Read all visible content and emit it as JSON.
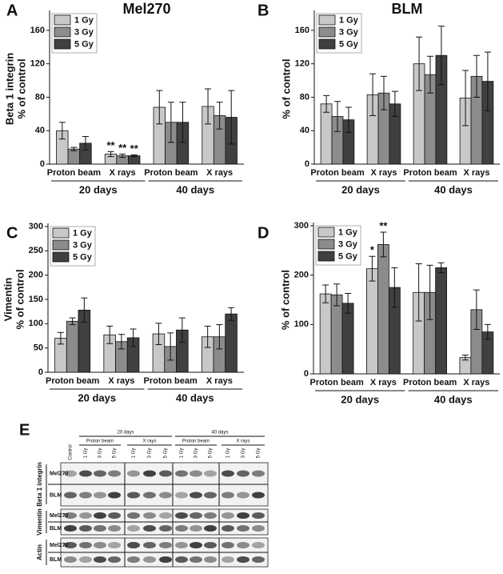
{
  "chart_data": [
    {
      "type": "bar",
      "panel": "A",
      "title": "Mel270",
      "ylabel": [
        "Beta 1 integrin",
        "% of control"
      ],
      "categories": [
        "Proton beam",
        "X rays",
        "Proton beam",
        "X rays"
      ],
      "groups": [
        "20 days",
        "40 days"
      ],
      "ylim": [
        0,
        180
      ],
      "yticks": [
        0,
        40,
        80,
        120,
        160
      ],
      "series": [
        {
          "name": "1 Gy",
          "color": "#c8c8c8",
          "values": [
            40,
            12,
            68,
            69
          ],
          "errors": [
            10,
            3,
            20,
            21
          ],
          "labels": [
            null,
            "**",
            null,
            null
          ]
        },
        {
          "name": "3 Gy",
          "color": "#8c8c8c",
          "values": [
            18,
            10,
            50,
            58
          ],
          "errors": [
            2,
            2,
            24,
            16
          ],
          "labels": [
            null,
            "**",
            null,
            null
          ]
        },
        {
          "name": "5 Gy",
          "color": "#404040",
          "values": [
            25,
            10,
            50,
            56
          ],
          "errors": [
            8,
            1,
            24,
            32
          ],
          "labels": [
            null,
            "**",
            null,
            null
          ]
        }
      ]
    },
    {
      "type": "bar",
      "panel": "B",
      "title": "BLM",
      "ylabel": [
        "% of control"
      ],
      "categories": [
        "Proton beam",
        "X rays",
        "Proton beam",
        "X rays"
      ],
      "groups": [
        "20 days",
        "40 days"
      ],
      "ylim": [
        0,
        180
      ],
      "yticks": [
        0,
        40,
        80,
        120,
        160
      ],
      "series": [
        {
          "name": "1 Gy",
          "color": "#c8c8c8",
          "values": [
            72,
            83,
            120,
            79
          ],
          "errors": [
            10,
            25,
            32,
            33
          ]
        },
        {
          "name": "3 Gy",
          "color": "#8c8c8c",
          "values": [
            57,
            85,
            107,
            105
          ],
          "errors": [
            18,
            20,
            22,
            25
          ]
        },
        {
          "name": "5 Gy",
          "color": "#404040",
          "values": [
            53,
            72,
            130,
            99
          ],
          "errors": [
            15,
            15,
            35,
            35
          ]
        }
      ]
    },
    {
      "type": "bar",
      "panel": "C",
      "ylabel": [
        "Vimentin",
        "% of control"
      ],
      "categories": [
        "Proton beam",
        "X rays",
        "Proton beam",
        "X rays"
      ],
      "groups": [
        "20 days",
        "40 days"
      ],
      "ylim": [
        0,
        300
      ],
      "yticks": [
        0,
        50,
        100,
        150,
        200,
        250,
        300
      ],
      "series": [
        {
          "name": "1 Gy",
          "color": "#c8c8c8",
          "values": [
            70,
            77,
            79,
            73
          ],
          "errors": [
            12,
            18,
            22,
            22
          ]
        },
        {
          "name": "3 Gy",
          "color": "#8c8c8c",
          "values": [
            105,
            63,
            53,
            73
          ],
          "errors": [
            7,
            15,
            28,
            25
          ]
        },
        {
          "name": "5 Gy",
          "color": "#404040",
          "values": [
            128,
            71,
            87,
            120
          ],
          "errors": [
            25,
            18,
            25,
            13
          ]
        }
      ]
    },
    {
      "type": "bar",
      "panel": "D",
      "ylabel": [
        "% of control"
      ],
      "categories": [
        "Proton beam",
        "X rays",
        "Proton beam",
        "X rays"
      ],
      "groups": [
        "20 days",
        "40 days"
      ],
      "ylim": [
        0,
        300
      ],
      "yticks": [
        0,
        100,
        200,
        300
      ],
      "series": [
        {
          "name": "1 Gy",
          "color": "#c8c8c8",
          "values": [
            162,
            213,
            165,
            33
          ],
          "errors": [
            18,
            25,
            58,
            5
          ],
          "labels": [
            null,
            "*",
            null,
            null
          ]
        },
        {
          "name": "3 Gy",
          "color": "#8c8c8c",
          "values": [
            160,
            262,
            165,
            130
          ],
          "errors": [
            22,
            25,
            55,
            40
          ],
          "labels": [
            null,
            "**",
            null,
            null
          ]
        },
        {
          "name": "5 Gy",
          "color": "#404040",
          "values": [
            143,
            175,
            215,
            85
          ],
          "errors": [
            20,
            40,
            10,
            15
          ]
        }
      ]
    }
  ],
  "blot": {
    "panel": "E",
    "control": "Control",
    "doses": [
      "1 Gy",
      "3 Gy",
      "5 Gy"
    ],
    "periods": [
      {
        "label": "20 days",
        "treatments": [
          "Proton beam",
          "X rays"
        ]
      },
      {
        "label": "40 days",
        "treatments": [
          "Proton beam",
          "X rays"
        ]
      }
    ],
    "proteins": [
      {
        "name": "Beta 1 integrin",
        "lines": [
          "Mel270",
          "BLM"
        ]
      },
      {
        "name": "Vimentin",
        "lines": [
          "Mel270",
          "BLM"
        ]
      },
      {
        "name": "Actin",
        "lines": [
          "Mel270",
          "BLM"
        ]
      }
    ]
  }
}
